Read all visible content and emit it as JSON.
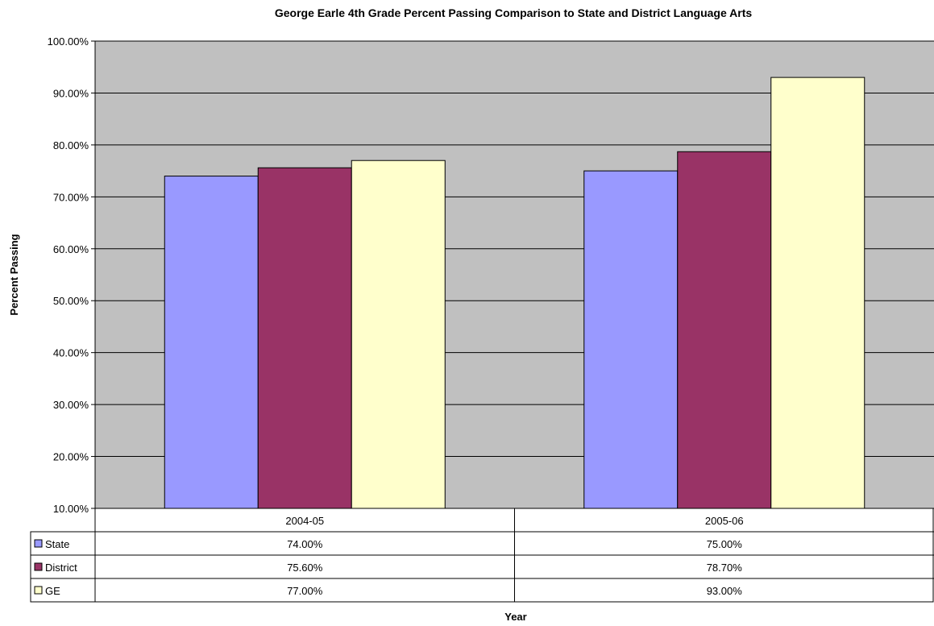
{
  "chart_data": {
    "type": "bar",
    "title": "George Earle 4th Grade Percent Passing Comparison to State and District Language Arts",
    "xlabel": "Year",
    "ylabel": "Percent Passing",
    "ylim": [
      10,
      100
    ],
    "y_ticks": [
      "10.00%",
      "20.00%",
      "30.00%",
      "40.00%",
      "50.00%",
      "60.00%",
      "70.00%",
      "80.00%",
      "90.00%",
      "100.00%"
    ],
    "categories": [
      "2004-05",
      "2005-06"
    ],
    "grid": true,
    "plot_background": "#c0c0c0",
    "legend": "data-table",
    "series": [
      {
        "name": "State",
        "values": [
          74.0,
          75.0
        ],
        "labels": [
          "74.00%",
          "75.00%"
        ],
        "color": "#9999ff"
      },
      {
        "name": "District",
        "values": [
          75.6,
          78.7
        ],
        "labels": [
          "75.60%",
          "78.70%"
        ],
        "color": "#993366"
      },
      {
        "name": "GE",
        "values": [
          77.0,
          93.0
        ],
        "labels": [
          "77.00%",
          "93.00%"
        ],
        "color": "#ffffcc"
      }
    ]
  }
}
